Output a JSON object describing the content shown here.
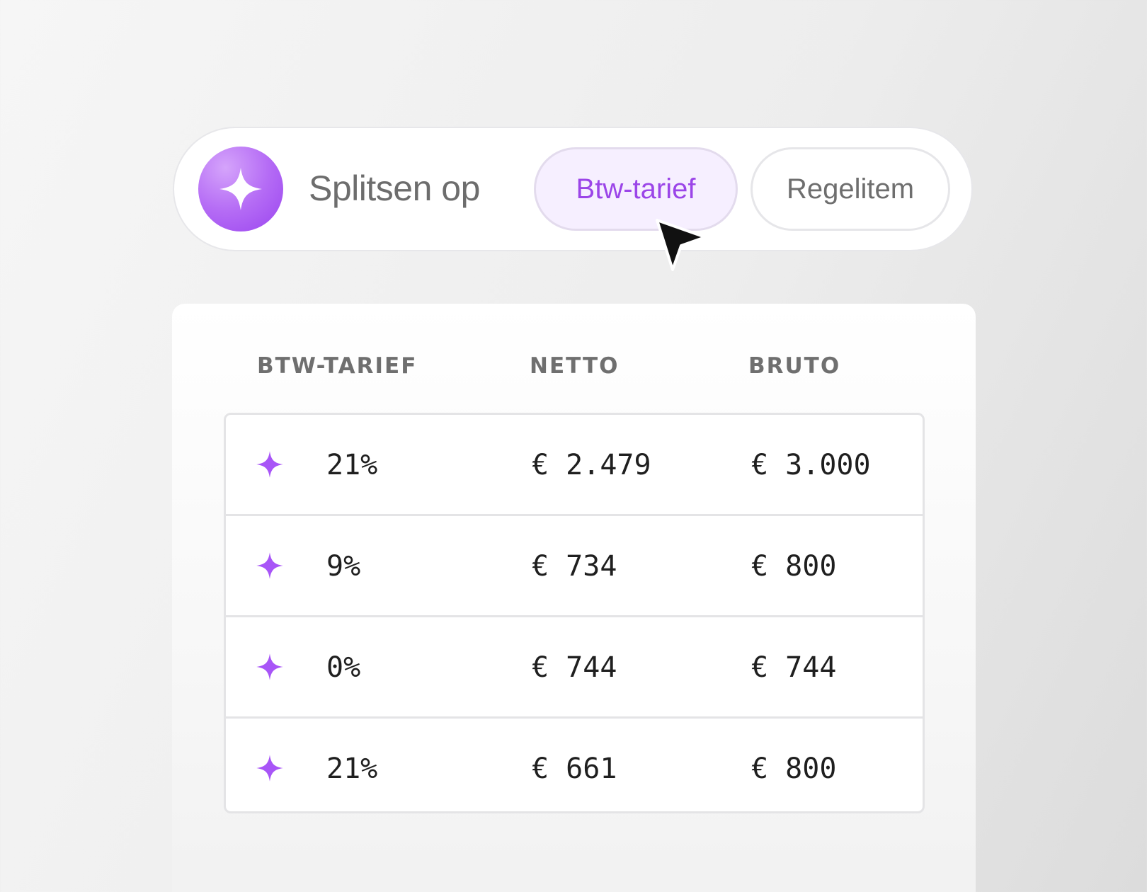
{
  "split_bar": {
    "label": "Splitsen op",
    "options": [
      {
        "label": "Btw-tarief",
        "active": true
      },
      {
        "label": "Regelitem",
        "active": false
      }
    ]
  },
  "table": {
    "headers": {
      "rate": "BTW-TARIEF",
      "net": "NETTO",
      "gross": "BRUTO"
    },
    "rows": [
      {
        "icon": "sparkle-icon",
        "rate": "21%",
        "net": "€ 2.479",
        "gross": "€ 3.000"
      },
      {
        "icon": "sparkle-icon",
        "rate": "9%",
        "net": "€ 734",
        "gross": "€ 800"
      },
      {
        "icon": "sparkle-icon",
        "rate": "0%",
        "net": "€ 744",
        "gross": "€ 744"
      },
      {
        "icon": "sparkle-icon",
        "rate": "21%",
        "net": "€ 661",
        "gross": "€ 800"
      }
    ]
  },
  "colors": {
    "accent": "#9b45e8",
    "accent_bg": "#f6efff",
    "sparkle": "#a855f7"
  }
}
